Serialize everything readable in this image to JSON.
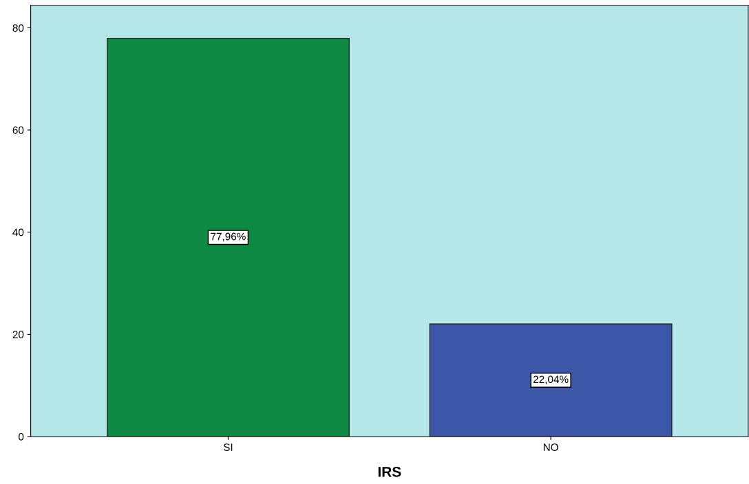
{
  "chart_data": {
    "type": "bar",
    "xlabel": "IRS",
    "categories": [
      "SI",
      "NO"
    ],
    "values": [
      77.96,
      22.04
    ],
    "colors": [
      "#0f8a44",
      "#3d57a8"
    ],
    "value_labels": [
      "77,96%",
      "22,04%"
    ],
    "ylim": [
      0,
      84.4
    ],
    "yticks": [
      0,
      20,
      40,
      60,
      80
    ],
    "grid": false
  }
}
